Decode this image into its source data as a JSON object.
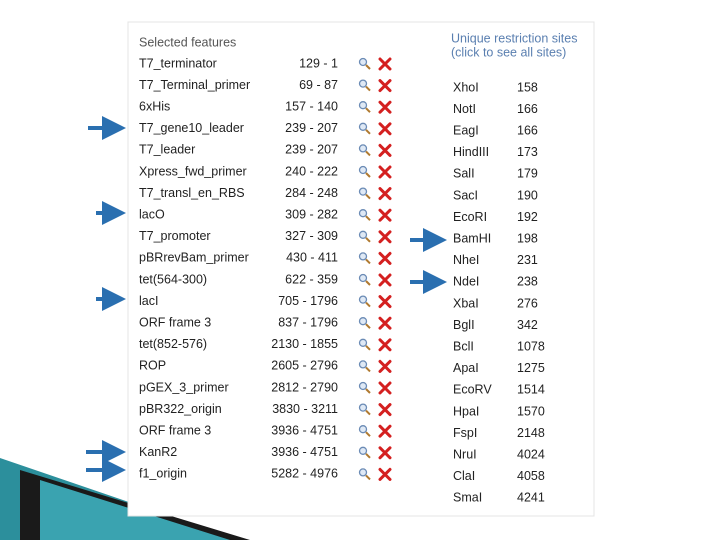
{
  "features_panel": {
    "title": "Selected features",
    "features": [
      {
        "name": "T7_terminator",
        "range": "129 - 1"
      },
      {
        "name": "T7_Terminal_primer",
        "range": "69 - 87"
      },
      {
        "name": "6xHis",
        "range": "157 - 140"
      },
      {
        "name": "T7_gene10_leader",
        "range": "239 - 207"
      },
      {
        "name": "T7_leader",
        "range": "239 - 207"
      },
      {
        "name": "Xpress_fwd_primer",
        "range": "240 - 222"
      },
      {
        "name": "T7_transl_en_RBS",
        "range": "284 - 248"
      },
      {
        "name": "lacO",
        "range": "309 - 282"
      },
      {
        "name": "T7_promoter",
        "range": "327 - 309"
      },
      {
        "name": "pBRrevBam_primer",
        "range": "430 - 411"
      },
      {
        "name": "tet(564-300)",
        "range": "622 - 359"
      },
      {
        "name": "lacI",
        "range": "705 - 1796"
      },
      {
        "name": "ORF frame 3",
        "range": "837 - 1796"
      },
      {
        "name": "tet(852-576)",
        "range": "2130 - 1855"
      },
      {
        "name": "ROP",
        "range": "2605 - 2796"
      },
      {
        "name": "pGEX_3_primer",
        "range": "2812 - 2790"
      },
      {
        "name": "pBR322_origin",
        "range": "3830 - 3211"
      },
      {
        "name": "ORF frame 3",
        "range": "3936 - 4751"
      },
      {
        "name": "KanR2",
        "range": "3936 - 4751"
      },
      {
        "name": "f1_origin",
        "range": "5282 - 4976"
      }
    ]
  },
  "sites_panel": {
    "title": "Unique restriction sites",
    "subtitle": "(click to see all sites)",
    "sites": [
      {
        "name": "XhoI",
        "position": "158"
      },
      {
        "name": "NotI",
        "position": "166"
      },
      {
        "name": "EagI",
        "position": "166"
      },
      {
        "name": "HindIII",
        "position": "173"
      },
      {
        "name": "SalI",
        "position": "179"
      },
      {
        "name": "SacI",
        "position": "190"
      },
      {
        "name": "EcoRI",
        "position": "192"
      },
      {
        "name": "BamHI",
        "position": "198"
      },
      {
        "name": "NheI",
        "position": "231"
      },
      {
        "name": "NdeI",
        "position": "238"
      },
      {
        "name": "XbaI",
        "position": "276"
      },
      {
        "name": "BglI",
        "position": "342"
      },
      {
        "name": "BclI",
        "position": "1078"
      },
      {
        "name": "ApaI",
        "position": "1275"
      },
      {
        "name": "EcoRV",
        "position": "1514"
      },
      {
        "name": "HpaI",
        "position": "1570"
      },
      {
        "name": "FspI",
        "position": "2148"
      },
      {
        "name": "NruI",
        "position": "4024"
      },
      {
        "name": "ClaI",
        "position": "4058"
      },
      {
        "name": "SmaI",
        "position": "4241"
      }
    ]
  }
}
